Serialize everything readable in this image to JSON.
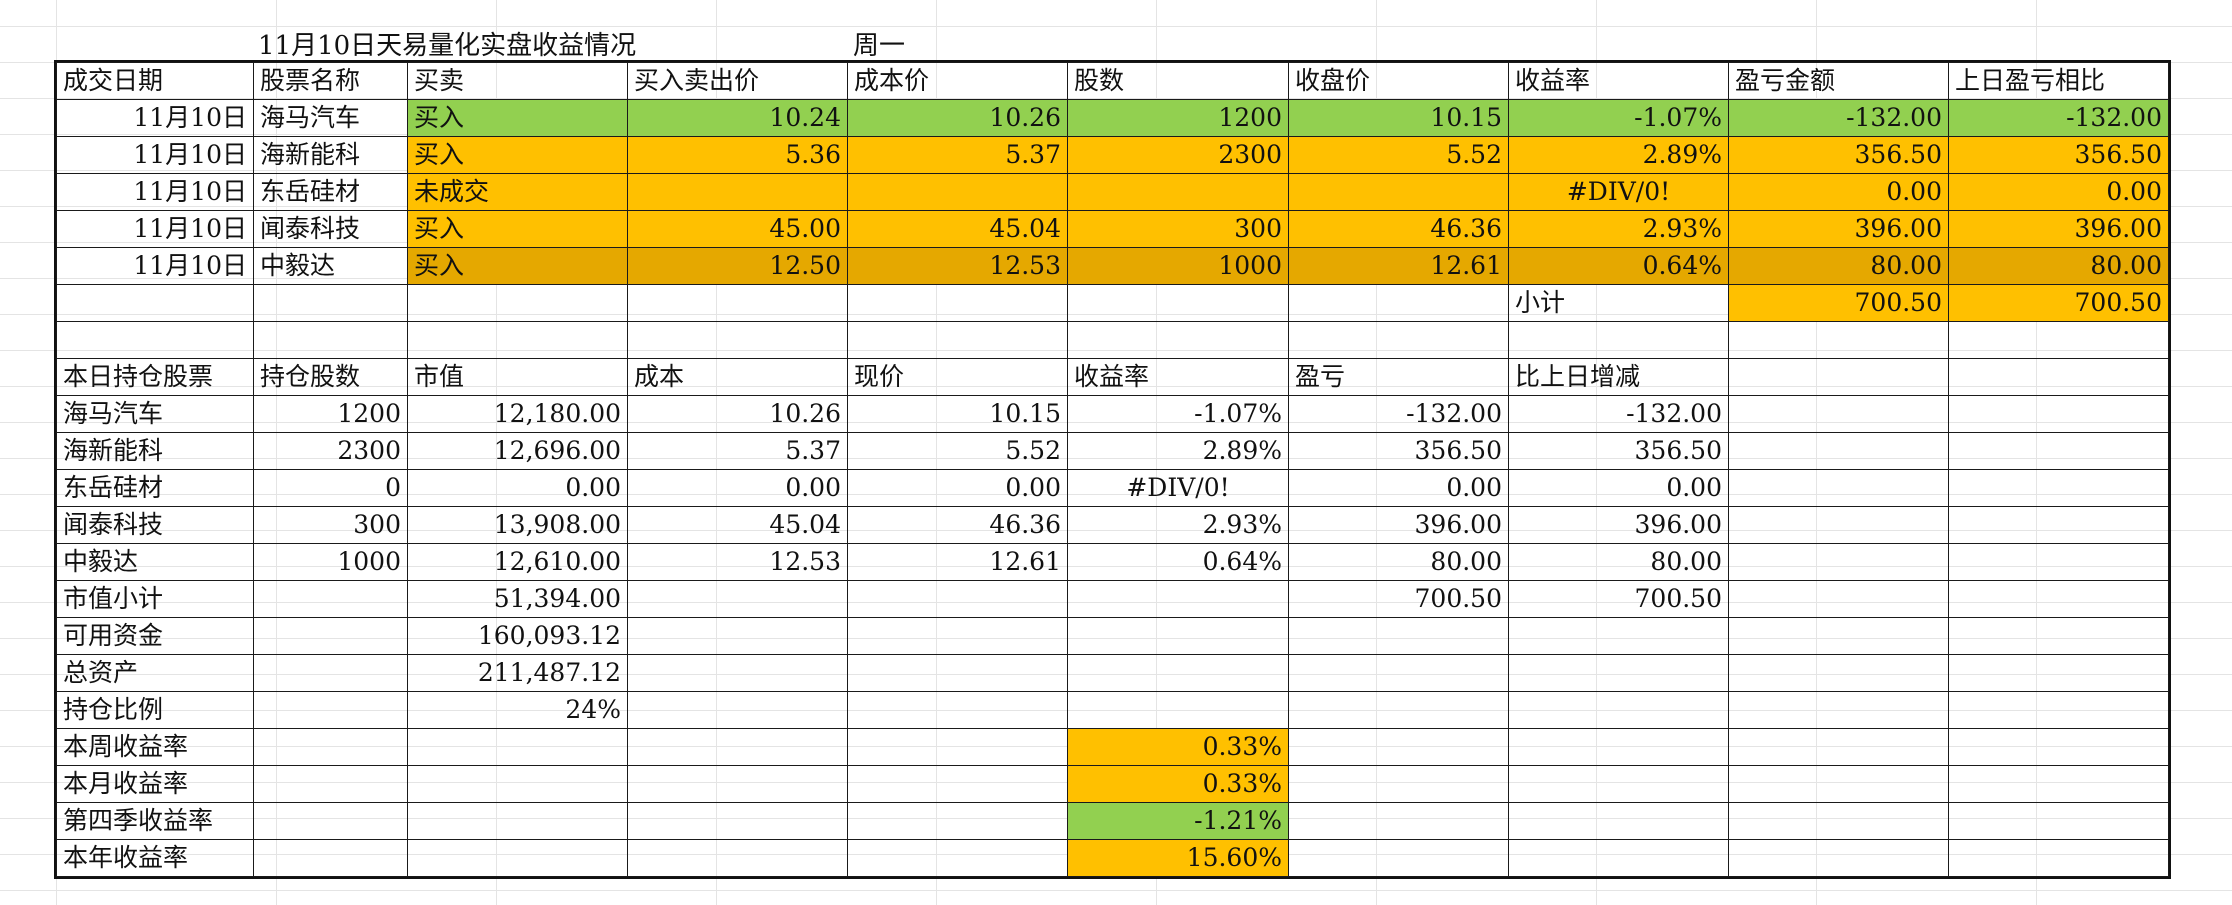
{
  "sheet": {
    "title": "11月10日天易量化实盘收益情况",
    "weekday": "周一"
  },
  "colors": {
    "green": "#92d050",
    "orange": "#ffc000",
    "dark_orange": "#e5a800"
  },
  "trades": {
    "headers": [
      "成交日期",
      "股票名称",
      "买卖",
      "买入卖出价",
      "成本价",
      "股数",
      "收盘价",
      "收益率",
      "盈亏金额",
      "上日盈亏相比"
    ],
    "rows": [
      {
        "date": "11月10日",
        "name": "海马汽车",
        "side": "买入",
        "price": "10.24",
        "cost": "10.26",
        "shares": "1200",
        "close": "10.15",
        "rate": "-1.07%",
        "pnl": "-132.00",
        "vs_prev": "-132.00",
        "color": "green"
      },
      {
        "date": "11月10日",
        "name": "海新能科",
        "side": "买入",
        "price": "5.36",
        "cost": "5.37",
        "shares": "2300",
        "close": "5.52",
        "rate": "2.89%",
        "pnl": "356.50",
        "vs_prev": "356.50",
        "color": "orange"
      },
      {
        "date": "11月10日",
        "name": "东岳硅材",
        "side": "未成交",
        "price": "",
        "cost": "",
        "shares": "",
        "close": "",
        "rate": "#DIV/0!",
        "pnl": "0.00",
        "vs_prev": "0.00",
        "color": "orange"
      },
      {
        "date": "11月10日",
        "name": "闻泰科技",
        "side": "买入",
        "price": "45.00",
        "cost": "45.04",
        "shares": "300",
        "close": "46.36",
        "rate": "2.93%",
        "pnl": "396.00",
        "vs_prev": "396.00",
        "color": "orange"
      },
      {
        "date": "11月10日",
        "name": "中毅达",
        "side": "买入",
        "price": "12.50",
        "cost": "12.53",
        "shares": "1000",
        "close": "12.61",
        "rate": "0.64%",
        "pnl": "80.00",
        "vs_prev": "80.00",
        "color": "dark_orange"
      }
    ],
    "subtotal_label": "小计",
    "subtotal_pnl": "700.50",
    "subtotal_vs_prev": "700.50"
  },
  "holdings": {
    "headers": [
      "本日持仓股票",
      "持仓股数",
      "市值",
      "成本",
      "现价",
      "收益率",
      "盈亏",
      "比上日增减"
    ],
    "rows": [
      {
        "name": "海马汽车",
        "shares": "1200",
        "value": "12,180.00",
        "cost": "10.26",
        "price": "10.15",
        "rate": "-1.07%",
        "pnl": "-132.00",
        "change": "-132.00"
      },
      {
        "name": "海新能科",
        "shares": "2300",
        "value": "12,696.00",
        "cost": "5.37",
        "price": "5.52",
        "rate": "2.89%",
        "pnl": "356.50",
        "change": "356.50"
      },
      {
        "name": "东岳硅材",
        "shares": "0",
        "value": "0.00",
        "cost": "0.00",
        "price": "0.00",
        "rate": "#DIV/0!",
        "pnl": "0.00",
        "change": "0.00"
      },
      {
        "name": "闻泰科技",
        "shares": "300",
        "value": "13,908.00",
        "cost": "45.04",
        "price": "46.36",
        "rate": "2.93%",
        "pnl": "396.00",
        "change": "396.00"
      },
      {
        "name": "中毅达",
        "shares": "1000",
        "value": "12,610.00",
        "cost": "12.53",
        "price": "12.61",
        "rate": "0.64%",
        "pnl": "80.00",
        "change": "80.00"
      }
    ],
    "market_value_subtotal_label": "市值小计",
    "market_value_subtotal": "51,394.00",
    "pnl_subtotal": "700.50",
    "change_subtotal": "700.50"
  },
  "summary": [
    {
      "label": "可用资金",
      "value": "160,093.12"
    },
    {
      "label": "总资产",
      "value": "211,487.12"
    },
    {
      "label": "持仓比例",
      "value": "24%"
    }
  ],
  "returns": [
    {
      "label": "本周收益率",
      "value": "0.33%",
      "color": "orange"
    },
    {
      "label": "本月收益率",
      "value": "0.33%",
      "color": "orange"
    },
    {
      "label": "第四季收益率",
      "value": "-1.21%",
      "color": "green"
    },
    {
      "label": "本年收益率",
      "value": "15.60%",
      "color": "orange"
    }
  ]
}
